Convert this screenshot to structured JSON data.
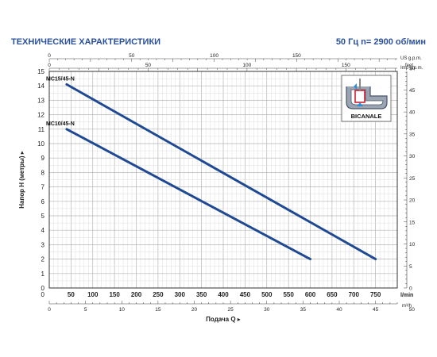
{
  "header": {
    "title_left": "ТЕХНИЧЕСКИЕ ХАРАКТЕРИСТИКИ",
    "title_right": "50 Гц   n= 2900 об/мин"
  },
  "chart_data": {
    "type": "line",
    "title": "",
    "xlabel": "Подача Q",
    "ylabel": "Напор H (метры)",
    "xlim": [
      0,
      800
    ],
    "ylim": [
      0,
      15
    ],
    "x_unit": "l/min",
    "grid": true,
    "x_ticks": [
      0,
      50,
      100,
      150,
      200,
      250,
      300,
      350,
      400,
      450,
      500,
      550,
      600,
      650,
      700,
      750
    ],
    "y_ticks": [
      0,
      1,
      2,
      3,
      4,
      5,
      6,
      7,
      8,
      9,
      10,
      11,
      12,
      13,
      14,
      15
    ],
    "top_axes": [
      {
        "unit": "US g.p.m.",
        "ticks": [
          0,
          50,
          100,
          150
        ],
        "max_l_per_min": 800
      },
      {
        "unit": "Imp g.p.m.",
        "ticks": [
          0,
          50,
          100,
          150
        ],
        "max_l_per_min": 800
      }
    ],
    "bottom_axis_m3h": {
      "unit": "m³/h",
      "ticks": [
        0,
        5,
        10,
        15,
        20,
        25,
        30,
        35,
        40,
        45,
        50
      ]
    },
    "right_axis_feet": {
      "unit": "feet",
      "ticks": [
        0,
        5,
        10,
        15,
        20,
        25,
        30,
        35,
        40,
        45,
        50
      ]
    },
    "series": [
      {
        "name": "MC15/45-N",
        "color": "#1f4a93",
        "points": [
          [
            40,
            14.1
          ],
          [
            750,
            2.0
          ]
        ]
      },
      {
        "name": "MC10/45-N",
        "color": "#1f4a93",
        "points": [
          [
            40,
            11.0
          ],
          [
            600,
            2.0
          ]
        ]
      }
    ],
    "legend": "curve labels at left end"
  },
  "inset": {
    "label": "BICANALE"
  }
}
